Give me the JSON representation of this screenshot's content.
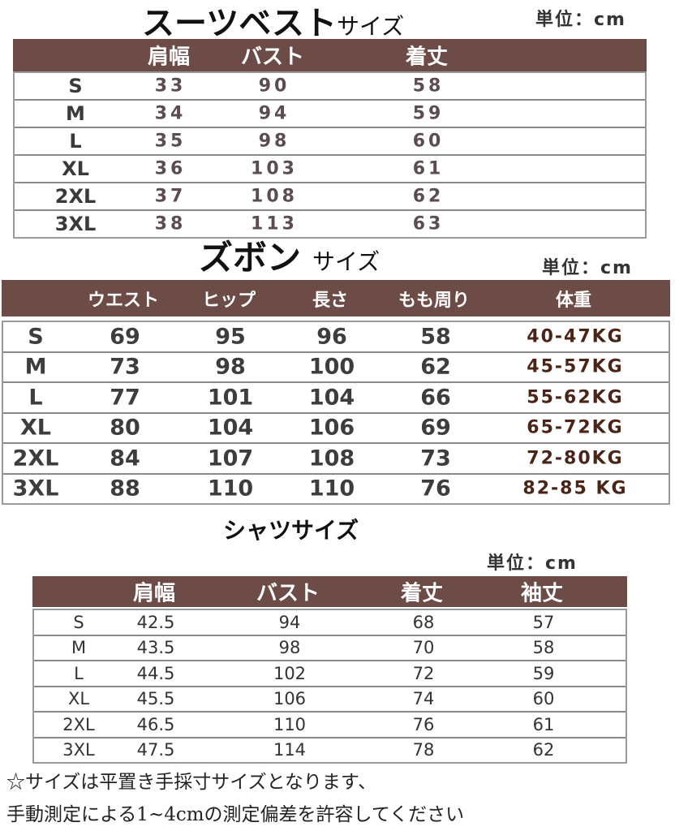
{
  "vest": {
    "title": "スーツベスト",
    "title_suffix": "サイズ",
    "unit": "単位：cm",
    "headers": [
      "",
      "肩幅",
      "バスト",
      "着丈"
    ],
    "rows": [
      [
        "S",
        "33",
        "90",
        "58"
      ],
      [
        "M",
        "34",
        "94",
        "59"
      ],
      [
        "L",
        "35",
        "98",
        "60"
      ],
      [
        "XL",
        "36",
        "103",
        "61"
      ],
      [
        "2XL",
        "37",
        "108",
        "62"
      ],
      [
        "3XL",
        "38",
        "113",
        "63"
      ]
    ]
  },
  "pants": {
    "title": "ズボン",
    "title_suffix": "サイズ",
    "unit": "単位：cm",
    "headers": [
      "",
      "ウエスト",
      "ヒップ",
      "長さ",
      "もも周り",
      "体重"
    ],
    "rows": [
      [
        "S",
        "69",
        "95",
        "96",
        "58",
        "40-47KG"
      ],
      [
        "M",
        "73",
        "98",
        "100",
        "62",
        "45-57KG"
      ],
      [
        "L",
        "77",
        "101",
        "104",
        "66",
        "55-62KG"
      ],
      [
        "XL",
        "80",
        "104",
        "106",
        "69",
        "65-72KG"
      ],
      [
        "2XL",
        "84",
        "107",
        "108",
        "73",
        "72-80KG"
      ],
      [
        "3XL",
        "88",
        "110",
        "110",
        "76",
        "82-85 KG"
      ]
    ]
  },
  "shirt": {
    "title": "シャツサイズ",
    "unit": "単位：cm",
    "headers": [
      "",
      "肩幅",
      "バスト",
      "着丈",
      "袖丈"
    ],
    "rows": [
      [
        "S",
        "42.5",
        "94",
        "68",
        "57"
      ],
      [
        "M",
        "43.5",
        "98",
        "70",
        "58"
      ],
      [
        "L",
        "44.5",
        "102",
        "72",
        "59"
      ],
      [
        "XL",
        "45.5",
        "106",
        "74",
        "60"
      ],
      [
        "2XL",
        "46.5",
        "110",
        "76",
        "61"
      ],
      [
        "3XL",
        "47.5",
        "114",
        "78",
        "62"
      ]
    ]
  },
  "notes": [
    "☆サイズは平置き手採寸サイズとなります、",
    "手動測定による1~4cmの測定偏差を許容してください"
  ],
  "colors": {
    "header_bg": "#6d4b47",
    "border": "#8a8a8a"
  }
}
